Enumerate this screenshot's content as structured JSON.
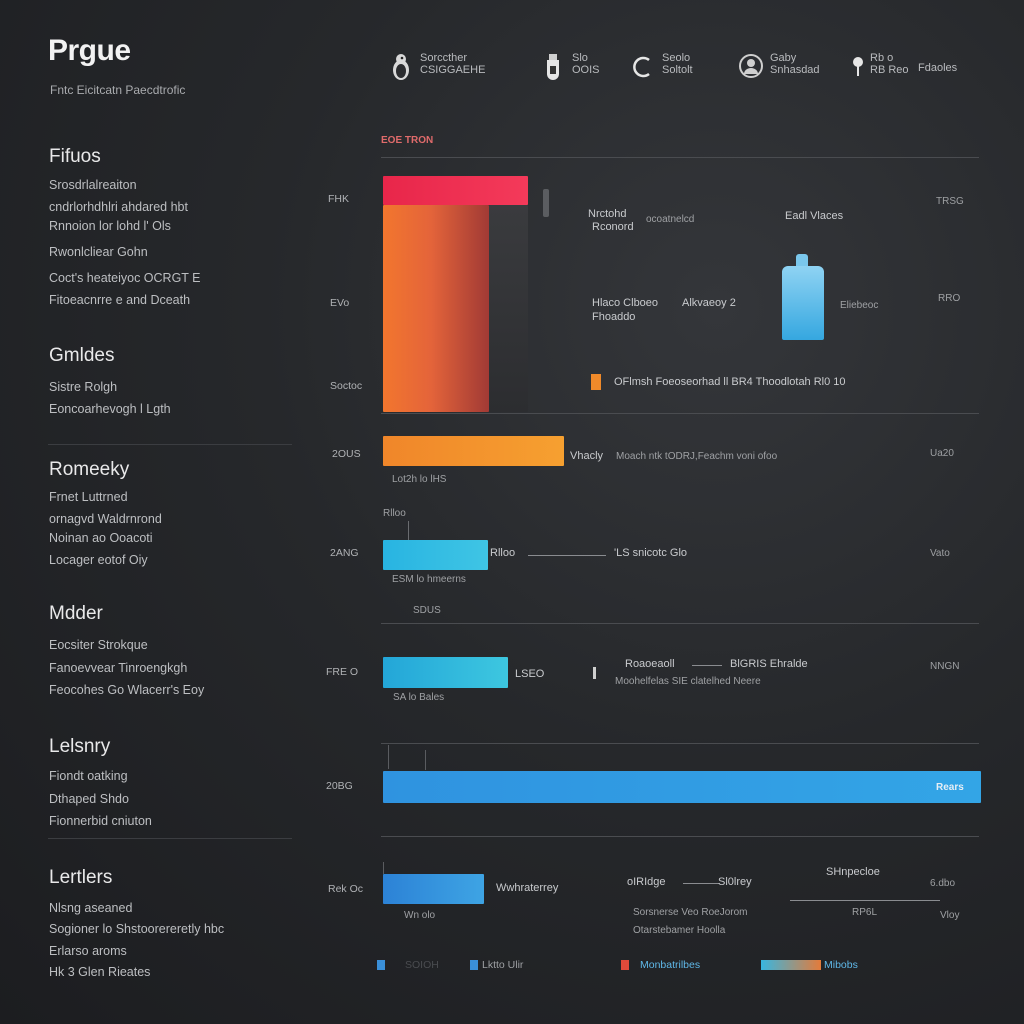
{
  "app": {
    "title": "Prgue",
    "subtitle": "Fntc Eicitcatn Paecdtrofic"
  },
  "sidebar": {
    "sections": [
      {
        "heading": "Fifuos",
        "items": [
          "Srosdrlalreaiton",
          "cndrlorhdhlri ahdared hbt",
          "Rnnoion lor lohd l' Ols",
          "Rwonlcliear Gohn",
          "Coct's heateiyoc OCRGT E",
          "Fitoeacnrre e and Dceath"
        ]
      },
      {
        "heading": "Gmldes",
        "items": [
          "Sistre Rolgh",
          "Eoncoarhevogh l Lgth"
        ]
      },
      {
        "heading": "Romeeky",
        "items": [
          "Frnet Luttrned",
          "ornagvd Waldrnrond",
          "Noinan ao Ooacoti",
          "Locager eotof Oiy"
        ]
      },
      {
        "heading": "Mdder",
        "items": [
          "Eocsiter Strokque",
          "Fanoevvear Tinroengkgh",
          "Feocohes Go Wlacerr's Eoy"
        ]
      },
      {
        "heading": "Lelsnry",
        "items": [
          "Fiondt oatking",
          "Dthaped Shdo",
          "Fionnerbid cniuton"
        ]
      },
      {
        "heading": "Lertlers",
        "items": [
          "Nlsng aseaned",
          "Sogioner lo Shstoorereretly hbc",
          "Erlarso aroms",
          "Hk 3 Glen Rieates"
        ]
      }
    ]
  },
  "header_items": [
    {
      "icon": "penguin-icon",
      "line1": "Sorccther",
      "line2": "CSIGGAEHE"
    },
    {
      "icon": "vial-icon",
      "line1": "Slo",
      "line2": "OOIS"
    },
    {
      "icon": "refresh-icon",
      "line1": "Seolo",
      "line2": "Soltolt"
    },
    {
      "icon": "user-icon",
      "line1": "Gaby",
      "line2": "Snhasdad"
    },
    {
      "icon": "pin-icon",
      "line1": "Rb o",
      "line2": "RB Reo"
    },
    {
      "icon": "",
      "line1": "Fdaoles",
      "line2": ""
    }
  ],
  "chart": {
    "header_label": "EOE TRON",
    "y_ticks": [
      "FHK",
      "EVo",
      "Soctoc",
      "2OUS",
      "2ANG",
      "FRE O",
      "20BG",
      "Rek Oc"
    ],
    "right_values": [
      "TRSG",
      "RRO",
      "Ua20",
      "Vato",
      "NNGN",
      "6.dbo"
    ],
    "annotations": {
      "a1": "Nrctohd",
      "a1b": "Rconord",
      "a2": "ocoatnelcd",
      "a3": "Eadl Vlaces",
      "a4": "Hlaco Clboeo",
      "a4b": "Fhoaddo",
      "a5": "Alkvaeoy 2",
      "a6": "Eliebeoc",
      "a7": "OFlmsh Foeoseorhad  ll BR4 Thoodlotah Rl0 10",
      "a8": "Vhacly",
      "a9": "Moach ntk tODRJ,Feachm voni ofoo",
      "a10": "Lot2h lo lHS",
      "a11": "Rlloo",
      "a12": "'LS snicotc Glo",
      "a13": "ESM lo hmeerns",
      "a14": "SDUS",
      "a15": "LSEO",
      "a16": "Roaoeaoll",
      "a17": "BlGRIS Ehralde",
      "a18": "Moohelfelas SIE clatelhed Neere",
      "a19": "SA lo Bales",
      "a20": "Rears",
      "a21": "Wwhraterrey",
      "a22": "oIRIdge",
      "a23": "Sl0lrey",
      "a24": "SHnpecloe",
      "a25": "Sorsnerse Veo RoeJorom",
      "a26": "Otarstebamer Hoolla",
      "a27": "Wn olo",
      "a28": "RP6L",
      "a29": "Vloy"
    },
    "legend": [
      {
        "label": "SOIOH",
        "color": "#3a8fd8"
      },
      {
        "label": "Lktto Ulir",
        "color": "#3a8fd8"
      },
      {
        "label": "Monbatrilbes",
        "color": "#e04a3a"
      },
      {
        "label": "Mibobs",
        "color": "#38b6e0"
      }
    ]
  }
}
